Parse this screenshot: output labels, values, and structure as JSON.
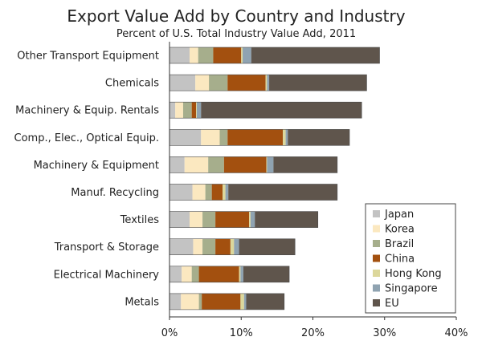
{
  "chart_data": {
    "type": "bar",
    "orientation": "horizontal",
    "stacked": true,
    "title": "Export Value Add by Country and Industry",
    "subtitle": "Percent of U.S. Total Industry Value Add, 2011",
    "xlabel": "",
    "ylabel": "",
    "xlim": [
      0,
      40
    ],
    "x_ticks": [
      "0%",
      "10%",
      "20%",
      "30%",
      "40%"
    ],
    "x_tick_values": [
      0,
      10,
      20,
      30,
      40
    ],
    "grid": false,
    "legend_position": "bottom-right",
    "categories": [
      "Other Transport Equipment",
      "Chemicals",
      "Machinery & Equip. Rentals",
      "Comp., Elec., Optical Equip.",
      "Machinery & Equipment",
      "Manuf. Recycling",
      "Textiles",
      "Transport & Storage",
      "Electrical Machinery",
      "Metals"
    ],
    "series": [
      {
        "name": "Japan",
        "color": "#c3c3c3",
        "values": [
          2.8,
          3.6,
          0.8,
          4.4,
          2.1,
          3.2,
          2.8,
          3.3,
          1.7,
          1.6
        ]
      },
      {
        "name": "Korea",
        "color": "#fbe8c0",
        "values": [
          1.2,
          1.9,
          1.1,
          2.6,
          3.3,
          1.8,
          1.8,
          1.3,
          1.4,
          2.5
        ]
      },
      {
        "name": "Brazil",
        "color": "#a6ae8c",
        "values": [
          2.1,
          2.6,
          1.2,
          1.1,
          2.2,
          0.9,
          1.8,
          1.8,
          1.0,
          0.4
        ]
      },
      {
        "name": "China",
        "color": "#a3500f",
        "values": [
          3.9,
          5.3,
          0.6,
          7.7,
          5.9,
          1.5,
          4.7,
          2.1,
          5.6,
          5.4
        ]
      },
      {
        "name": "Hong Kong",
        "color": "#dcd79b",
        "values": [
          0.2,
          0.2,
          0.1,
          0.4,
          0.1,
          0.4,
          0.2,
          0.5,
          0.2,
          0.5
        ]
      },
      {
        "name": "Singapore",
        "color": "#8fa3b1",
        "values": [
          1.2,
          0.3,
          0.6,
          0.3,
          0.9,
          0.4,
          0.6,
          0.7,
          0.4,
          0.3
        ]
      },
      {
        "name": "EU",
        "color": "#5f554c",
        "values": [
          17.9,
          13.6,
          22.4,
          8.6,
          8.9,
          15.2,
          8.8,
          7.8,
          6.4,
          5.3
        ]
      }
    ]
  }
}
